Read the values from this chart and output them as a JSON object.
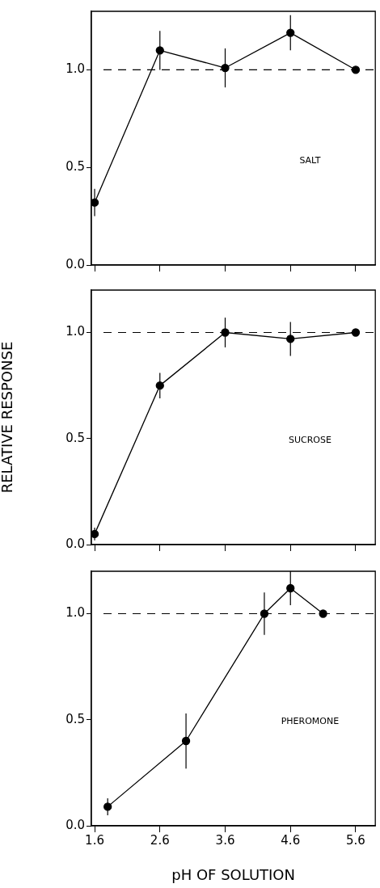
{
  "chart_data": [
    {
      "type": "line",
      "annotations": [
        "SALT"
      ],
      "x": [
        1.6,
        2.6,
        3.6,
        4.6,
        5.6
      ],
      "xlim": [
        1.55,
        5.9
      ],
      "xticks": [
        1.6,
        2.6,
        3.6,
        4.6,
        5.6
      ],
      "ylim": [
        0,
        1.3
      ],
      "yticks": [
        {
          "value": 0,
          "label": "0.0"
        },
        {
          "value": 0.5,
          "label": "0.5"
        },
        {
          "value": 1,
          "label": "1.0"
        }
      ],
      "tick_labels": "y",
      "grid": false,
      "legend": false,
      "marker": "circle",
      "line_style": "solid",
      "series": [
        {
          "color": "#000000",
          "values": [
            0.32,
            1.1,
            1.01,
            1.19,
            1.0
          ],
          "errors": [
            0.07,
            0.1,
            0.1,
            0.09,
            null
          ]
        }
      ],
      "ref_lines": [
        {
          "axis": "y",
          "value": 1,
          "color": "#000000",
          "line_style": "dashed"
        }
      ]
    },
    {
      "type": "line",
      "ylabel": "RELATIVE RESPONSE",
      "annotations": [
        "SUCROSE"
      ],
      "x": [
        1.6,
        2.6,
        3.6,
        4.6,
        5.6
      ],
      "xlim": [
        1.55,
        5.9
      ],
      "xticks": [
        1.6,
        2.6,
        3.6,
        4.6,
        5.6
      ],
      "ylim": [
        0,
        1.2
      ],
      "yticks": [
        {
          "value": 0,
          "label": "0.0"
        },
        {
          "value": 0.5,
          "label": "0.5"
        },
        {
          "value": 1,
          "label": "1.0"
        }
      ],
      "tick_labels": "y",
      "grid": false,
      "legend": false,
      "marker": "circle",
      "line_style": "solid",
      "series": [
        {
          "color": "#000000",
          "values": [
            0.05,
            0.75,
            1.0,
            0.97,
            1.0
          ],
          "errors": [
            0.03,
            0.06,
            0.07,
            0.08,
            null
          ]
        }
      ],
      "ref_lines": [
        {
          "axis": "y",
          "value": 1,
          "color": "#000000",
          "line_style": "dashed"
        }
      ]
    },
    {
      "type": "line",
      "xlabel": "pH OF SOLUTION",
      "annotations": [
        "PHEROMONE"
      ],
      "x": [
        1.8,
        3.0,
        4.2,
        4.6,
        5.1
      ],
      "xlim": [
        1.55,
        5.9
      ],
      "xticks": [
        1.6,
        2.6,
        3.6,
        4.6,
        5.6
      ],
      "ylim": [
        0,
        1.2
      ],
      "yticks": [
        {
          "value": 0,
          "label": "0.0"
        },
        {
          "value": 0.5,
          "label": "0.5"
        },
        {
          "value": 1,
          "label": "1.0"
        }
      ],
      "grid": false,
      "legend": false,
      "marker": "circle",
      "line_style": "solid",
      "series": [
        {
          "color": "#000000",
          "values": [
            0.09,
            0.4,
            1.0,
            1.12,
            1.0
          ],
          "errors": [
            0.04,
            0.13,
            0.1,
            0.08,
            null
          ]
        }
      ],
      "ref_lines": [
        {
          "axis": "y",
          "value": 1,
          "color": "#000000",
          "line_style": "dashed"
        }
      ]
    }
  ]
}
